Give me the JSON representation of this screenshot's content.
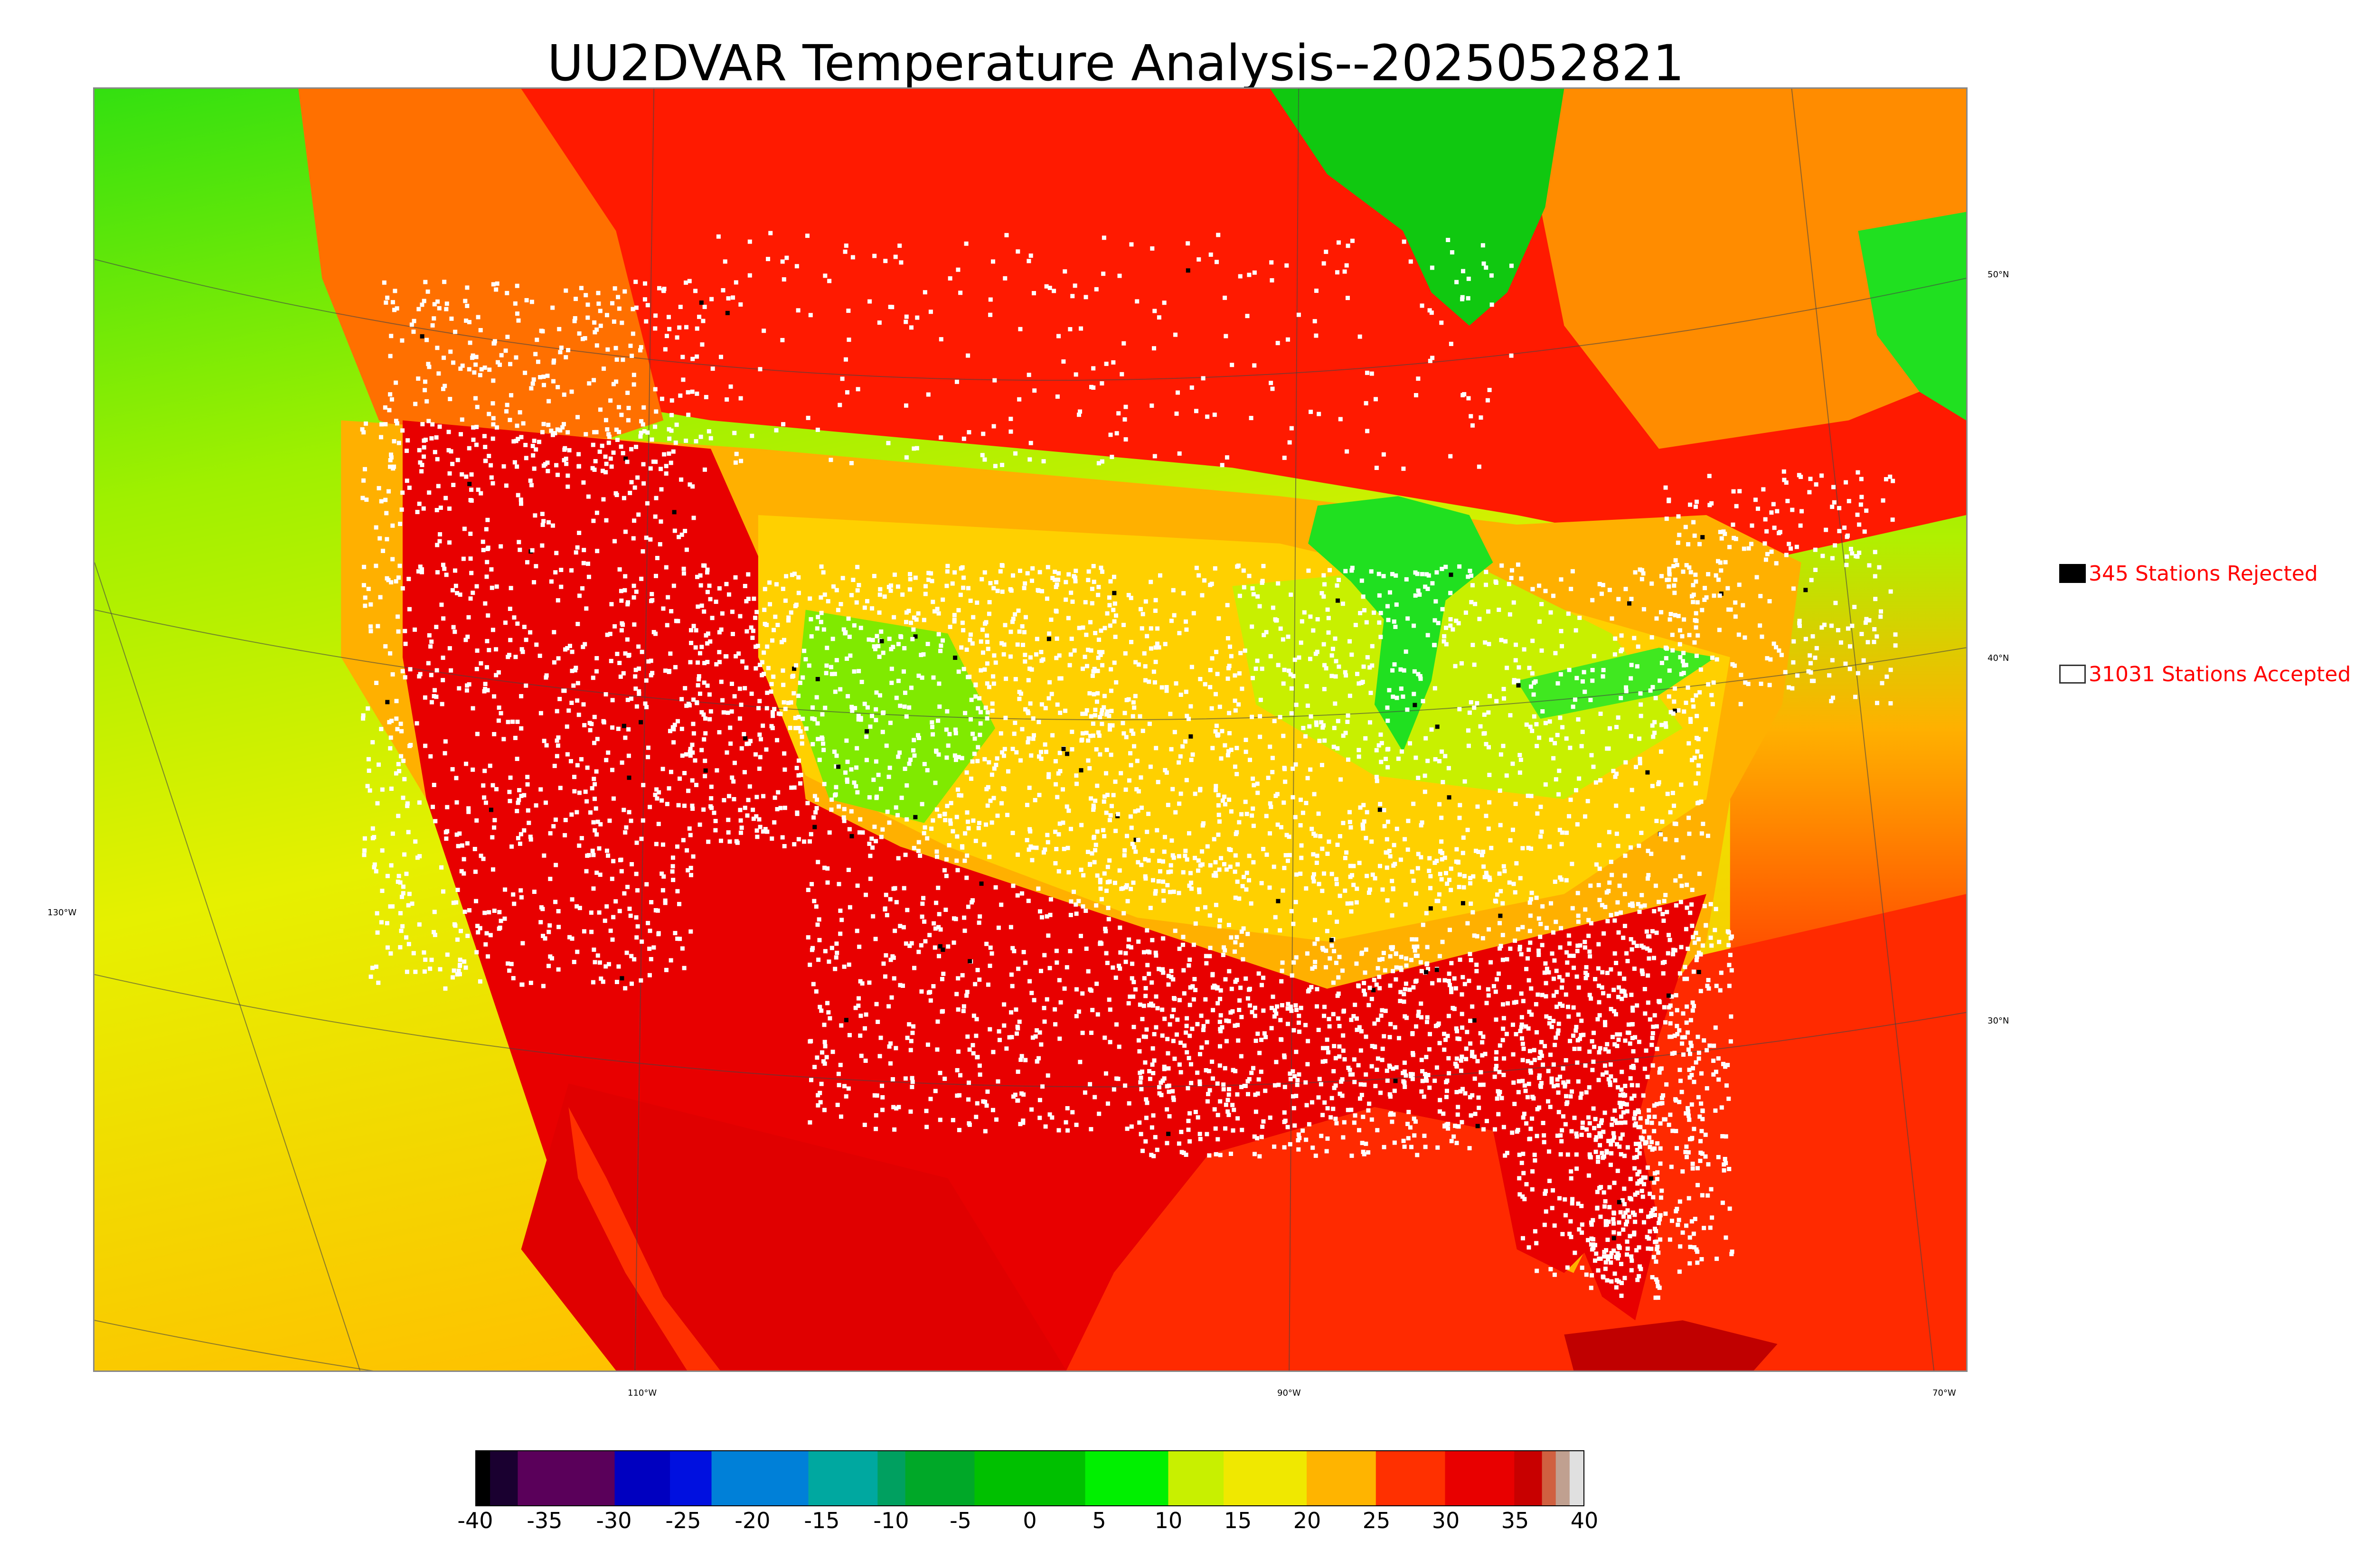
{
  "title": "UU2DVAR Temperature Analysis--2025052821",
  "map": {
    "longitude_labels": [
      "110°W",
      "90°W",
      "70°W"
    ],
    "latitude_labels": [
      "50°N",
      "40°N",
      "30°N"
    ],
    "west_label": "130°W",
    "colors": {
      "ocean_pacific_north": "#33e010",
      "ocean_pacific_south": "#e6f000",
      "ocean_atlantic": "#ff2a00",
      "canada_north": "#ff1a00",
      "hudson_bay": "#10c810",
      "great_lakes": "#20e020",
      "interior_cool": "#ffc000",
      "southwest_hot": "#e80000",
      "station_accepted": "#ffffff",
      "station_rejected": "#000000"
    }
  },
  "legend": {
    "rejected_label": "345 Stations Rejected",
    "accepted_label": "31031 Stations Accepted",
    "rejected_count": 345,
    "accepted_count": 31031
  },
  "colorbar": {
    "ticks": [
      "-40",
      "-35",
      "-30",
      "-25",
      "-20",
      "-15",
      "-10",
      "-5",
      "0",
      "5",
      "10",
      "15",
      "20",
      "25",
      "30",
      "35",
      "40"
    ],
    "min": -40,
    "max": 40,
    "stops": [
      {
        "from": -40,
        "to": -39,
        "color": "#000000"
      },
      {
        "from": -39,
        "to": -37,
        "color": "#1a0030"
      },
      {
        "from": -37,
        "to": -30,
        "color": "#5a005a"
      },
      {
        "from": -30,
        "to": -26,
        "color": "#0000c0"
      },
      {
        "from": -26,
        "to": -23,
        "color": "#0010e0"
      },
      {
        "from": -23,
        "to": -16,
        "color": "#0080d8"
      },
      {
        "from": -16,
        "to": -11,
        "color": "#00a8a0"
      },
      {
        "from": -11,
        "to": -9,
        "color": "#00a060"
      },
      {
        "from": -9,
        "to": -4,
        "color": "#00a828"
      },
      {
        "from": -4,
        "to": 4,
        "color": "#00c000"
      },
      {
        "from": 4,
        "to": 10,
        "color": "#00f000"
      },
      {
        "from": 10,
        "to": 14,
        "color": "#c8f000"
      },
      {
        "from": 14,
        "to": 20,
        "color": "#f0e800"
      },
      {
        "from": 20,
        "to": 25,
        "color": "#ffb400"
      },
      {
        "from": 25,
        "to": 30,
        "color": "#ff3000"
      },
      {
        "from": 30,
        "to": 35,
        "color": "#e80000"
      },
      {
        "from": 35,
        "to": 37,
        "color": "#c80000"
      },
      {
        "from": 37,
        "to": 38,
        "color": "#d06040"
      },
      {
        "from": 38,
        "to": 39,
        "color": "#c0a090"
      },
      {
        "from": 39,
        "to": 40,
        "color": "#e0e0e0"
      }
    ]
  }
}
